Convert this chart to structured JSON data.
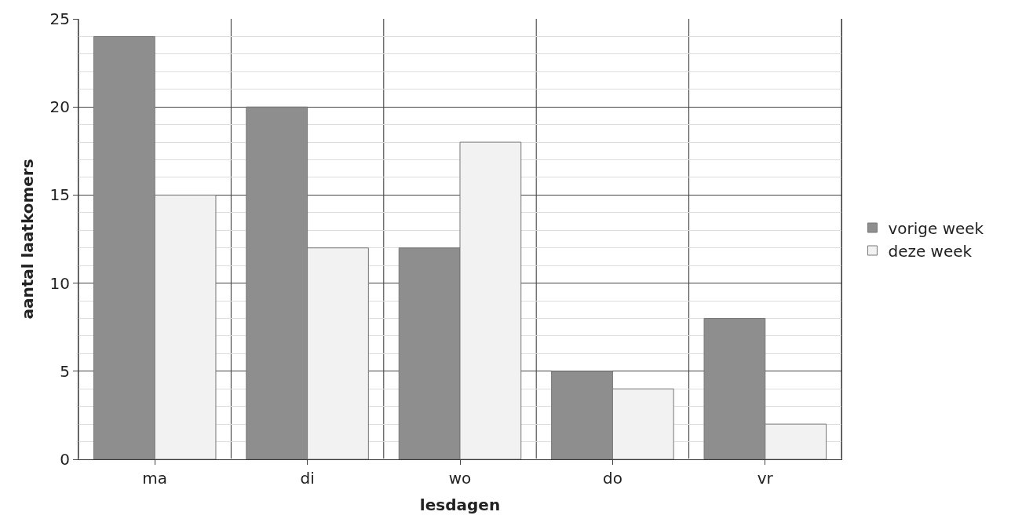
{
  "chart_data": {
    "type": "bar",
    "xlabel": "lesdagen",
    "ylabel": "aantal laatkomers",
    "categories": [
      "ma",
      "di",
      "wo",
      "do",
      "vr"
    ],
    "series": [
      {
        "name": "vorige week",
        "color": "#8e8e8e",
        "values": [
          24,
          20,
          12,
          5,
          8
        ]
      },
      {
        "name": "deze week",
        "color": "#f2f2f2",
        "values": [
          15,
          12,
          18,
          4,
          2
        ]
      }
    ],
    "ylim": [
      0,
      25
    ],
    "yticks": [
      0,
      5,
      10,
      15,
      20,
      25
    ],
    "grid": true,
    "legend": "right"
  }
}
